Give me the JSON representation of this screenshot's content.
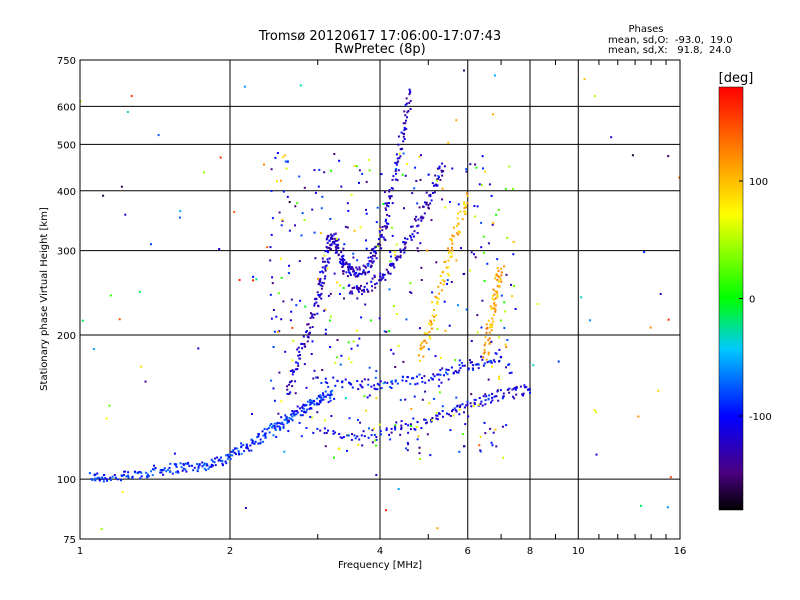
{
  "chart_data": {
    "type": "scatter",
    "title": "Tromsø 20120617 17:06:00-17:07:43",
    "subtitle": "RwPretec (8p)",
    "xlabel": "Frequency [MHz]",
    "ylabel": "Stationary phase Virtual Height [km]",
    "x_scale": "log",
    "y_scale": "log",
    "xlim": [
      1,
      16
    ],
    "ylim": [
      75,
      750
    ],
    "x_ticks": [
      1,
      2,
      4,
      6,
      8,
      10,
      16
    ],
    "y_ticks": [
      75,
      100,
      200,
      300,
      400,
      500,
      600,
      750
    ],
    "grid": true,
    "phase_stats": {
      "header": "Phases",
      "line_o": "mean, sd,O:  -93.0,  19.0",
      "line_x": "mean, sd,X:   91.8,  24.0"
    },
    "colorbar": {
      "label": "[deg]",
      "ticks": [
        100,
        0,
        -100
      ],
      "range": [
        -180,
        180
      ]
    },
    "traces": [
      {
        "phase": -90,
        "points": [
          [
            1.05,
            101
          ],
          [
            1.1,
            101
          ],
          [
            1.2,
            101
          ],
          [
            1.3,
            102
          ],
          [
            1.4,
            104
          ],
          [
            1.5,
            105
          ],
          [
            1.6,
            106
          ],
          [
            1.7,
            106
          ],
          [
            1.8,
            107
          ],
          [
            1.9,
            109
          ],
          [
            2.0,
            112
          ],
          [
            2.1,
            115
          ],
          [
            2.2,
            118
          ],
          [
            2.3,
            122
          ],
          [
            2.4,
            126
          ],
          [
            2.5,
            130
          ],
          [
            2.6,
            133
          ],
          [
            2.7,
            137
          ],
          [
            2.8,
            140
          ],
          [
            2.9,
            143
          ],
          [
            3.0,
            146
          ],
          [
            3.1,
            148
          ],
          [
            3.2,
            150
          ]
        ]
      },
      {
        "phase": -120,
        "points": [
          [
            2.6,
            150
          ],
          [
            2.7,
            170
          ],
          [
            2.8,
            190
          ],
          [
            2.9,
            210
          ],
          [
            3.0,
            235
          ],
          [
            3.05,
            255
          ],
          [
            3.1,
            280
          ],
          [
            3.15,
            305
          ],
          [
            3.2,
            322
          ],
          [
            3.25,
            315
          ],
          [
            3.3,
            300
          ],
          [
            3.35,
            285
          ],
          [
            3.4,
            278
          ],
          [
            3.5,
            272
          ],
          [
            3.6,
            270
          ],
          [
            3.7,
            272
          ],
          [
            3.8,
            280
          ],
          [
            3.9,
            295
          ],
          [
            4.0,
            315
          ],
          [
            4.1,
            345
          ],
          [
            4.2,
            385
          ],
          [
            4.3,
            435
          ],
          [
            4.4,
            500
          ],
          [
            4.5,
            570
          ],
          [
            4.6,
            645
          ]
        ]
      },
      {
        "phase": -125,
        "points": [
          [
            3.5,
            250
          ],
          [
            3.6,
            248
          ],
          [
            3.8,
            252
          ],
          [
            4.0,
            262
          ],
          [
            4.2,
            275
          ],
          [
            4.4,
            295
          ],
          [
            4.6,
            320
          ],
          [
            4.8,
            350
          ],
          [
            5.0,
            385
          ],
          [
            5.2,
            420
          ],
          [
            5.4,
            450
          ]
        ]
      },
      {
        "phase": -110,
        "points": [
          [
            3.0,
            125
          ],
          [
            3.5,
            123
          ],
          [
            4.0,
            124
          ],
          [
            4.5,
            127
          ],
          [
            5.0,
            132
          ],
          [
            5.5,
            137
          ],
          [
            6.0,
            142
          ],
          [
            6.5,
            147
          ],
          [
            7.0,
            150
          ],
          [
            7.5,
            152
          ],
          [
            8.0,
            154
          ]
        ]
      },
      {
        "phase": -100,
        "points": [
          [
            3.0,
            160
          ],
          [
            3.5,
            158
          ],
          [
            4.0,
            158
          ],
          [
            4.5,
            160
          ],
          [
            5.0,
            163
          ],
          [
            5.5,
            167
          ],
          [
            6.0,
            172
          ],
          [
            6.5,
            177
          ],
          [
            7.0,
            180
          ]
        ]
      },
      {
        "phase": 100,
        "points": [
          [
            4.8,
            180
          ],
          [
            5.0,
            200
          ],
          [
            5.2,
            230
          ],
          [
            5.4,
            270
          ],
          [
            5.6,
            310
          ],
          [
            5.8,
            350
          ],
          [
            6.0,
            390
          ]
        ]
      },
      {
        "phase": 110,
        "points": [
          [
            6.5,
            180
          ],
          [
            6.6,
            200
          ],
          [
            6.7,
            220
          ],
          [
            6.8,
            240
          ],
          [
            6.9,
            260
          ],
          [
            7.0,
            275
          ]
        ]
      }
    ]
  }
}
